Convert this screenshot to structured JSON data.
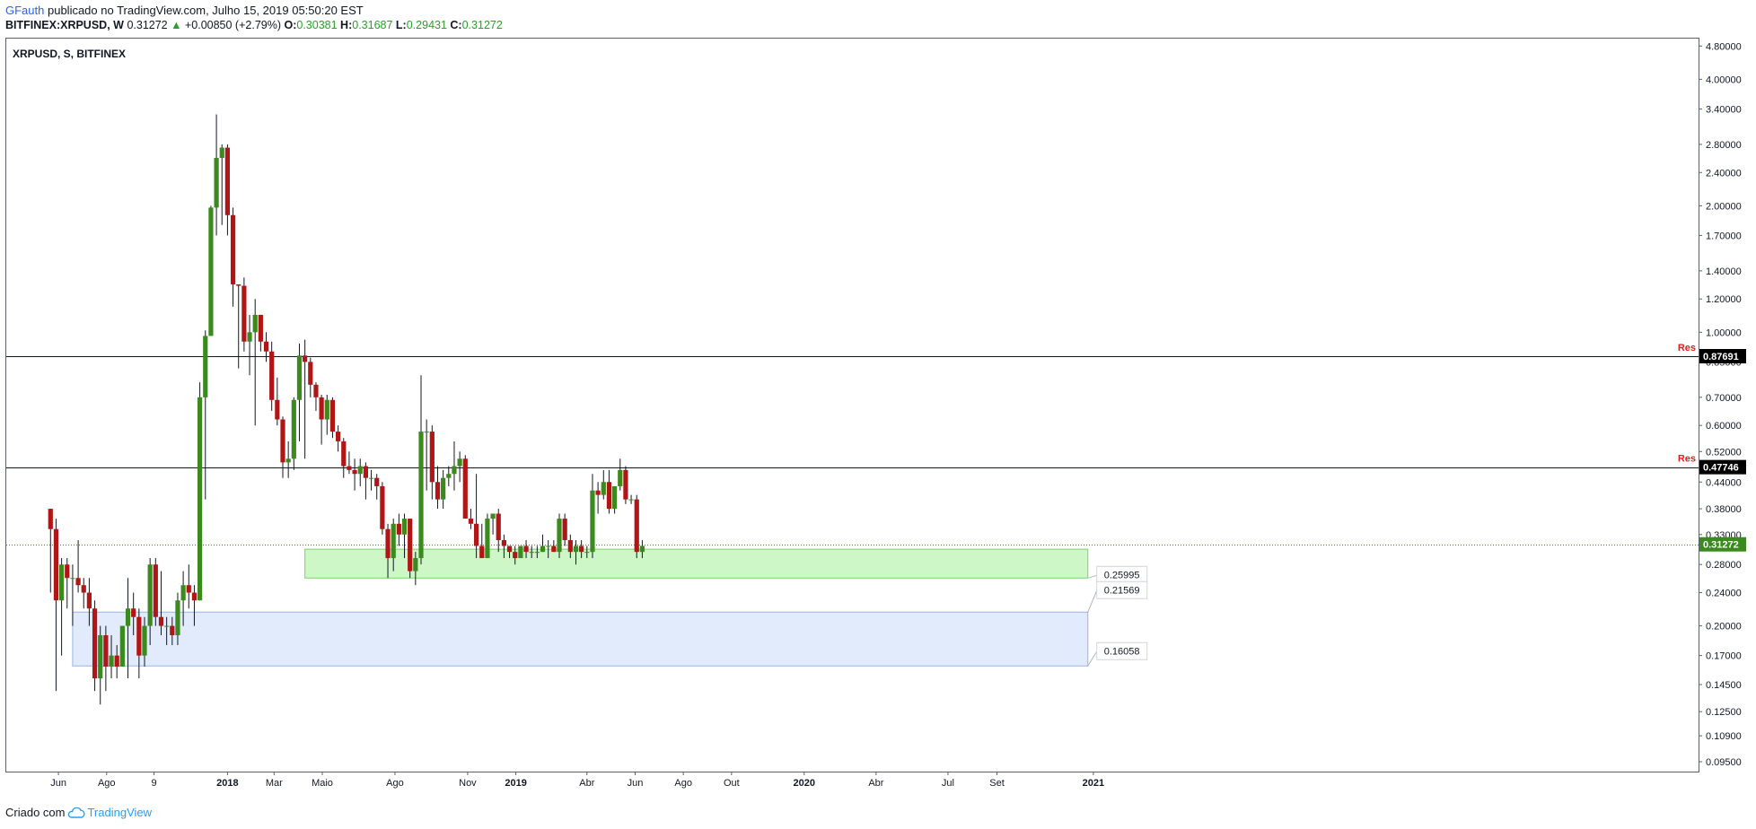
{
  "header": {
    "author": "GFauth",
    "published_text": "publicado no TradingView.com, Julho 15, 2019 05:50:20 EST",
    "symbol": "BITFINEX:XRPUSD, W",
    "last": "0.31272",
    "change": "+0.00850 (+2.79%)",
    "o_label": "O:",
    "o_value": "0.30381",
    "h_label": "H:",
    "h_value": "0.31687",
    "l_label": "L:",
    "l_value": "0.29431",
    "c_label": "C:",
    "c_value": "0.31272"
  },
  "pane_title": "XRPUSD, S, BITFINEX",
  "footer": {
    "created_with": "Criado com",
    "brand": "TradingView"
  },
  "colors": {
    "up": "#3a8a1e",
    "down": "#b01616",
    "zone_green": "#cdf7c6",
    "zone_blue": "#e1ebfb",
    "res_label": "#e02020",
    "last_price_bg": "#3a8a1e"
  },
  "chart_data": {
    "type": "candlestick",
    "title": "XRPUSD, S, BITFINEX",
    "y_scale": "log",
    "ylim": [
      0.09,
      5.0
    ],
    "y_ticks": [
      0.095,
      0.1095,
      0.125,
      0.145,
      0.17,
      0.2,
      0.24,
      0.28,
      0.33,
      0.38,
      0.44,
      0.52,
      0.6,
      0.7,
      0.85,
      1.0,
      1.2,
      1.4,
      1.7,
      2.0,
      2.4,
      2.8,
      3.4,
      4.0,
      4.8
    ],
    "y_tick_labels": [
      "0.09500",
      "0.10900",
      "0.12500",
      "0.14500",
      "0.17000",
      "0.20000",
      "0.24000",
      "0.28000",
      "0.33000",
      "0.38000",
      "0.44000",
      "0.52000",
      "0.60000",
      "0.70000",
      "0.85000",
      "1.00000",
      "1.20000",
      "1.40000",
      "1.70000",
      "2.00000",
      "2.40000",
      "2.80000",
      "3.40000",
      "4.00000",
      "4.80000"
    ],
    "x_axis_start": "2017-03-27",
    "x_ticks": [
      {
        "label": "Jun",
        "bold": false,
        "date": "2017-06-01"
      },
      {
        "label": "Ago",
        "bold": false,
        "date": "2017-08-01"
      },
      {
        "label": "9",
        "bold": false,
        "date": "2017-09-30"
      },
      {
        "label": "2018",
        "bold": true,
        "date": "2018-01-01"
      },
      {
        "label": "Mar",
        "bold": false,
        "date": "2018-03-01"
      },
      {
        "label": "Maio",
        "bold": false,
        "date": "2018-05-01"
      },
      {
        "label": "Ago",
        "bold": false,
        "date": "2018-08-01"
      },
      {
        "label": "Nov",
        "bold": false,
        "date": "2018-11-01"
      },
      {
        "label": "2019",
        "bold": true,
        "date": "2019-01-01"
      },
      {
        "label": "Abr",
        "bold": false,
        "date": "2019-04-01"
      },
      {
        "label": "Jun",
        "bold": false,
        "date": "2019-06-01"
      },
      {
        "label": "Ago",
        "bold": false,
        "date": "2019-08-01"
      },
      {
        "label": "Out",
        "bold": false,
        "date": "2019-10-01"
      },
      {
        "label": "2020",
        "bold": true,
        "date": "2020-01-01"
      },
      {
        "label": "Abr",
        "bold": false,
        "date": "2020-04-01"
      },
      {
        "label": "Jul",
        "bold": false,
        "date": "2020-07-01"
      },
      {
        "label": "Set",
        "bold": false,
        "date": "2020-09-01"
      },
      {
        "label": "2021",
        "bold": true,
        "date": "2021-01-01"
      }
    ],
    "candles_start": "2017-05-22",
    "candle_interval": "weekly",
    "ohlc": [
      [
        0.38,
        0.38,
        0.24,
        0.34
      ],
      [
        0.34,
        0.36,
        0.14,
        0.23
      ],
      [
        0.23,
        0.29,
        0.17,
        0.28
      ],
      [
        0.28,
        0.29,
        0.22,
        0.26
      ],
      [
        0.26,
        0.28,
        0.2,
        0.26
      ],
      [
        0.26,
        0.32,
        0.24,
        0.25
      ],
      [
        0.25,
        0.26,
        0.22,
        0.24
      ],
      [
        0.24,
        0.26,
        0.2,
        0.22
      ],
      [
        0.22,
        0.23,
        0.14,
        0.15
      ],
      [
        0.15,
        0.2,
        0.13,
        0.19
      ],
      [
        0.19,
        0.2,
        0.14,
        0.16
      ],
      [
        0.16,
        0.19,
        0.15,
        0.17
      ],
      [
        0.17,
        0.18,
        0.15,
        0.16
      ],
      [
        0.16,
        0.2,
        0.16,
        0.2
      ],
      [
        0.2,
        0.26,
        0.15,
        0.22
      ],
      [
        0.22,
        0.24,
        0.19,
        0.21
      ],
      [
        0.21,
        0.22,
        0.15,
        0.17
      ],
      [
        0.17,
        0.21,
        0.16,
        0.2
      ],
      [
        0.2,
        0.29,
        0.18,
        0.28
      ],
      [
        0.28,
        0.29,
        0.2,
        0.21
      ],
      [
        0.21,
        0.27,
        0.19,
        0.2
      ],
      [
        0.2,
        0.21,
        0.18,
        0.2
      ],
      [
        0.2,
        0.21,
        0.18,
        0.19
      ],
      [
        0.19,
        0.24,
        0.18,
        0.23
      ],
      [
        0.23,
        0.27,
        0.2,
        0.25
      ],
      [
        0.25,
        0.28,
        0.22,
        0.24
      ],
      [
        0.24,
        0.25,
        0.2,
        0.23
      ],
      [
        0.23,
        0.76,
        0.23,
        0.7
      ],
      [
        0.7,
        1.01,
        0.4,
        0.98
      ],
      [
        0.98,
        2.0,
        0.98,
        1.98
      ],
      [
        1.98,
        3.3,
        1.7,
        2.6
      ],
      [
        2.6,
        2.8,
        1.8,
        2.75
      ],
      [
        2.75,
        2.8,
        1.7,
        1.9
      ],
      [
        1.9,
        1.98,
        1.15,
        1.3
      ],
      [
        1.3,
        1.3,
        0.82,
        1.29
      ],
      [
        1.29,
        1.35,
        0.9,
        0.95
      ],
      [
        0.95,
        1.1,
        0.79,
        1.0
      ],
      [
        1.0,
        1.2,
        0.6,
        1.1
      ],
      [
        1.1,
        1.1,
        0.9,
        0.95
      ],
      [
        0.95,
        1.0,
        0.85,
        0.9
      ],
      [
        0.9,
        0.95,
        0.65,
        0.69
      ],
      [
        0.69,
        0.78,
        0.6,
        0.62
      ],
      [
        0.62,
        0.63,
        0.45,
        0.49
      ],
      [
        0.49,
        0.55,
        0.45,
        0.5
      ],
      [
        0.5,
        0.7,
        0.47,
        0.69
      ],
      [
        0.69,
        0.94,
        0.55,
        0.88
      ],
      [
        0.88,
        0.96,
        0.5,
        0.85
      ],
      [
        0.85,
        0.87,
        0.7,
        0.75
      ],
      [
        0.75,
        0.76,
        0.65,
        0.7
      ],
      [
        0.7,
        0.71,
        0.54,
        0.62
      ],
      [
        0.62,
        0.71,
        0.57,
        0.69
      ],
      [
        0.69,
        0.7,
        0.56,
        0.58
      ],
      [
        0.58,
        0.6,
        0.52,
        0.55
      ],
      [
        0.55,
        0.56,
        0.45,
        0.48
      ],
      [
        0.48,
        0.52,
        0.46,
        0.47
      ],
      [
        0.47,
        0.5,
        0.42,
        0.46
      ],
      [
        0.46,
        0.5,
        0.43,
        0.48
      ],
      [
        0.48,
        0.49,
        0.4,
        0.45
      ],
      [
        0.45,
        0.47,
        0.42,
        0.45
      ],
      [
        0.45,
        0.46,
        0.4,
        0.43
      ],
      [
        0.43,
        0.44,
        0.33,
        0.34
      ],
      [
        0.34,
        0.35,
        0.26,
        0.29
      ],
      [
        0.29,
        0.36,
        0.27,
        0.35
      ],
      [
        0.35,
        0.37,
        0.31,
        0.33
      ],
      [
        0.33,
        0.37,
        0.29,
        0.36
      ],
      [
        0.36,
        0.36,
        0.26,
        0.27
      ],
      [
        0.27,
        0.3,
        0.25,
        0.29
      ],
      [
        0.29,
        0.79,
        0.28,
        0.58
      ],
      [
        0.58,
        0.62,
        0.42,
        0.58
      ],
      [
        0.58,
        0.6,
        0.4,
        0.44
      ],
      [
        0.44,
        0.48,
        0.38,
        0.4
      ],
      [
        0.4,
        0.47,
        0.38,
        0.45
      ],
      [
        0.45,
        0.48,
        0.43,
        0.46
      ],
      [
        0.46,
        0.55,
        0.42,
        0.48
      ],
      [
        0.48,
        0.52,
        0.44,
        0.5
      ],
      [
        0.5,
        0.51,
        0.36,
        0.36
      ],
      [
        0.36,
        0.38,
        0.34,
        0.35
      ],
      [
        0.35,
        0.46,
        0.29,
        0.31
      ],
      [
        0.31,
        0.35,
        0.29,
        0.29
      ],
      [
        0.29,
        0.37,
        0.29,
        0.36
      ],
      [
        0.36,
        0.37,
        0.33,
        0.37
      ],
      [
        0.37,
        0.38,
        0.3,
        0.32
      ],
      [
        0.32,
        0.33,
        0.29,
        0.31
      ],
      [
        0.31,
        0.31,
        0.29,
        0.3
      ],
      [
        0.3,
        0.31,
        0.28,
        0.29
      ],
      [
        0.29,
        0.31,
        0.29,
        0.31
      ],
      [
        0.31,
        0.32,
        0.29,
        0.3
      ],
      [
        0.3,
        0.31,
        0.29,
        0.3
      ],
      [
        0.3,
        0.31,
        0.29,
        0.3
      ],
      [
        0.3,
        0.33,
        0.3,
        0.31
      ],
      [
        0.31,
        0.32,
        0.29,
        0.31
      ],
      [
        0.31,
        0.32,
        0.3,
        0.3
      ],
      [
        0.3,
        0.37,
        0.29,
        0.36
      ],
      [
        0.36,
        0.37,
        0.31,
        0.32
      ],
      [
        0.32,
        0.33,
        0.29,
        0.3
      ],
      [
        0.3,
        0.32,
        0.28,
        0.31
      ],
      [
        0.31,
        0.32,
        0.29,
        0.3
      ],
      [
        0.3,
        0.31,
        0.29,
        0.3
      ],
      [
        0.3,
        0.46,
        0.29,
        0.42
      ],
      [
        0.42,
        0.44,
        0.37,
        0.41
      ],
      [
        0.41,
        0.47,
        0.4,
        0.44
      ],
      [
        0.44,
        0.47,
        0.37,
        0.38
      ],
      [
        0.38,
        0.43,
        0.37,
        0.43
      ],
      [
        0.43,
        0.5,
        0.42,
        0.47
      ],
      [
        0.47,
        0.48,
        0.39,
        0.4
      ],
      [
        0.4,
        0.41,
        0.39,
        0.4
      ],
      [
        0.4,
        0.41,
        0.29,
        0.3
      ],
      [
        0.3,
        0.32,
        0.29,
        0.31
      ]
    ],
    "current_price": 0.31272,
    "horizontal_lines": [
      {
        "price": 0.87691,
        "label": "Res",
        "value_label": "0.87691"
      },
      {
        "price": 0.47746,
        "label": "Res",
        "value_label": "0.47746"
      }
    ],
    "zones": [
      {
        "from": "2018-04-09",
        "to": "2020-12-25",
        "low": 0.25995,
        "high": 0.3045,
        "color": "green"
      },
      {
        "from": "2017-06-19",
        "to": "2020-12-25",
        "low": 0.16058,
        "high": 0.21569,
        "color": "blue"
      }
    ],
    "zone_labels": [
      "0.25995",
      "0.21569",
      "0.16058"
    ],
    "last_price_label": "0.31272"
  }
}
